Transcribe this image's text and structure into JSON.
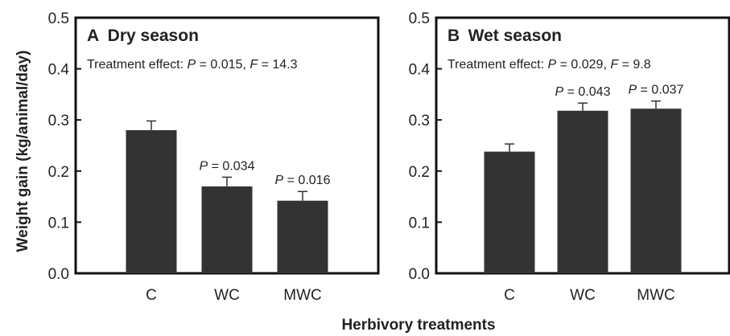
{
  "figure": {
    "ylabel": "Weight gain (kg/animal/day)",
    "xlabel": "Herbivory treatments"
  },
  "chart_data": [
    {
      "type": "bar",
      "panel_letter": "A",
      "title": "Dry season",
      "effect": {
        "prefix": "Treatment effect: ",
        "p_label": "P",
        "p_value": " = 0.015, ",
        "f_label": "F",
        "f_value": " = 14.3"
      },
      "categories": [
        "C",
        "WC",
        "MWC"
      ],
      "values": [
        0.28,
        0.17,
        0.142
      ],
      "errors": [
        0.018,
        0.018,
        0.018
      ],
      "annotations": [
        null,
        {
          "label": "P",
          "value": " = 0.034"
        },
        {
          "label": "P",
          "value": " = 0.016"
        }
      ],
      "ylim": [
        0.0,
        0.5
      ],
      "yticks": [
        "0.0",
        "0.1",
        "0.2",
        "0.3",
        "0.4",
        "0.5"
      ],
      "bar_color": "#333333"
    },
    {
      "type": "bar",
      "panel_letter": "B",
      "title": "Wet season",
      "effect": {
        "prefix": "Treatment effect: ",
        "p_label": "P",
        "p_value": " = 0.029, ",
        "f_label": "F",
        "f_value": " = 9.8"
      },
      "categories": [
        "C",
        "WC",
        "MWC"
      ],
      "values": [
        0.238,
        0.318,
        0.322
      ],
      "errors": [
        0.015,
        0.015,
        0.015
      ],
      "annotations": [
        null,
        {
          "label": "P",
          "value": " = 0.043"
        },
        {
          "label": "P",
          "value": " = 0.037"
        }
      ],
      "ylim": [
        0.0,
        0.5
      ],
      "yticks": [
        "0.0",
        "0.1",
        "0.2",
        "0.3",
        "0.4",
        "0.5"
      ],
      "bar_color": "#333333"
    }
  ]
}
